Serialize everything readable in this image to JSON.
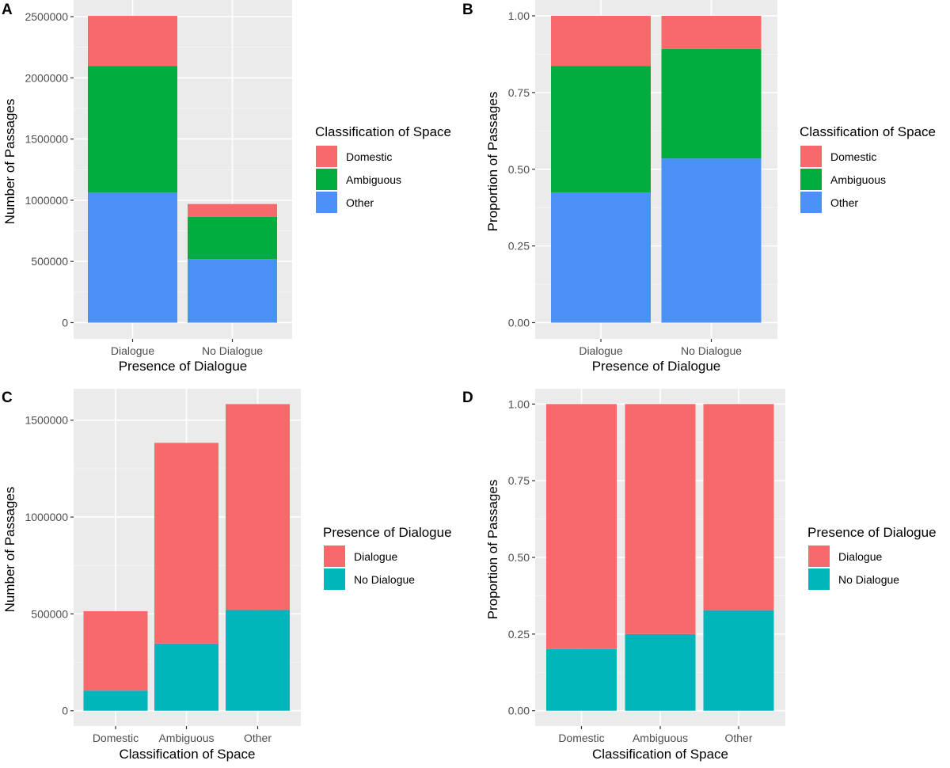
{
  "chart_data": [
    {
      "panel": "A",
      "type": "bar",
      "stacked": true,
      "title": "",
      "xlabel": "Presence of Dialogue",
      "ylabel": "Number of Passages",
      "categories": [
        "Dialogue",
        "No Dialogue"
      ],
      "series": [
        {
          "name": "Other",
          "color": "#4A90F7",
          "values": [
            1062000,
            520000
          ]
        },
        {
          "name": "Ambiguous",
          "color": "#00AD3E",
          "values": [
            1034000,
            345000
          ]
        },
        {
          "name": "Domestic",
          "color": "#F8696B",
          "values": [
            410000,
            104000
          ]
        }
      ],
      "ylim": [
        0,
        2500000
      ],
      "yticks": [
        0,
        500000,
        1000000,
        1500000,
        2000000,
        2500000
      ],
      "ytick_labels": [
        "0",
        "500000",
        "1000000",
        "1500000",
        "2000000",
        "2500000"
      ],
      "grid": true,
      "legend": {
        "title": "Classification of Space",
        "placement": "right",
        "entries": [
          {
            "label": "Domestic",
            "color": "#F8696B"
          },
          {
            "label": "Ambiguous",
            "color": "#00AD3E"
          },
          {
            "label": "Other",
            "color": "#4A90F7"
          }
        ]
      }
    },
    {
      "panel": "B",
      "type": "bar",
      "stacked": true,
      "title": "",
      "xlabel": "Presence of Dialogue",
      "ylabel": "Proportion of Passages",
      "categories": [
        "Dialogue",
        "No Dialogue"
      ],
      "series": [
        {
          "name": "Other",
          "color": "#4A90F7",
          "values": [
            0.424,
            0.535
          ]
        },
        {
          "name": "Ambiguous",
          "color": "#00AD3E",
          "values": [
            0.413,
            0.357
          ]
        },
        {
          "name": "Domestic",
          "color": "#F8696B",
          "values": [
            0.163,
            0.108
          ]
        }
      ],
      "ylim": [
        0,
        1
      ],
      "yticks": [
        0,
        0.25,
        0.5,
        0.75,
        1
      ],
      "ytick_labels": [
        "0.00",
        "0.25",
        "0.50",
        "0.75",
        "1.00"
      ],
      "grid": true,
      "legend": {
        "title": "Classification of Space",
        "placement": "right",
        "entries": [
          {
            "label": "Domestic",
            "color": "#F8696B"
          },
          {
            "label": "Ambiguous",
            "color": "#00AD3E"
          },
          {
            "label": "Other",
            "color": "#4A90F7"
          }
        ]
      }
    },
    {
      "panel": "C",
      "type": "bar",
      "stacked": true,
      "title": "",
      "xlabel": "Classification of Space",
      "ylabel": "Number of Passages",
      "categories": [
        "Domestic",
        "Ambiguous",
        "Other"
      ],
      "series": [
        {
          "name": "No Dialogue",
          "color": "#00B6BA",
          "values": [
            104000,
            347000,
            520000
          ]
        },
        {
          "name": "Dialogue",
          "color": "#F8696B",
          "values": [
            410000,
            1036000,
            1063000
          ]
        }
      ],
      "ylim": [
        0,
        1500000
      ],
      "yticks": [
        0,
        500000,
        1000000,
        1500000
      ],
      "ytick_labels": [
        "0",
        "500000",
        "1000000",
        "1500000"
      ],
      "grid": true,
      "legend": {
        "title": "Presence of Dialogue",
        "placement": "right",
        "entries": [
          {
            "label": "Dialogue",
            "color": "#F8696B"
          },
          {
            "label": "No Dialogue",
            "color": "#00B6BA"
          }
        ]
      }
    },
    {
      "panel": "D",
      "type": "bar",
      "stacked": true,
      "title": "",
      "xlabel": "Classification of Space",
      "ylabel": "Proportion of Passages",
      "categories": [
        "Domestic",
        "Ambiguous",
        "Other"
      ],
      "series": [
        {
          "name": "No Dialogue",
          "color": "#00B6BA",
          "values": [
            0.201,
            0.25,
            0.328
          ]
        },
        {
          "name": "Dialogue",
          "color": "#F8696B",
          "values": [
            0.799,
            0.75,
            0.672
          ]
        }
      ],
      "ylim": [
        0,
        1
      ],
      "yticks": [
        0,
        0.25,
        0.5,
        0.75,
        1
      ],
      "ytick_labels": [
        "0.00",
        "0.25",
        "0.50",
        "0.75",
        "1.00"
      ],
      "grid": true,
      "legend": {
        "title": "Presence of Dialogue",
        "placement": "right",
        "entries": [
          {
            "label": "Dialogue",
            "color": "#F8696B"
          },
          {
            "label": "No Dialogue",
            "color": "#00B6BA"
          }
        ]
      }
    }
  ]
}
